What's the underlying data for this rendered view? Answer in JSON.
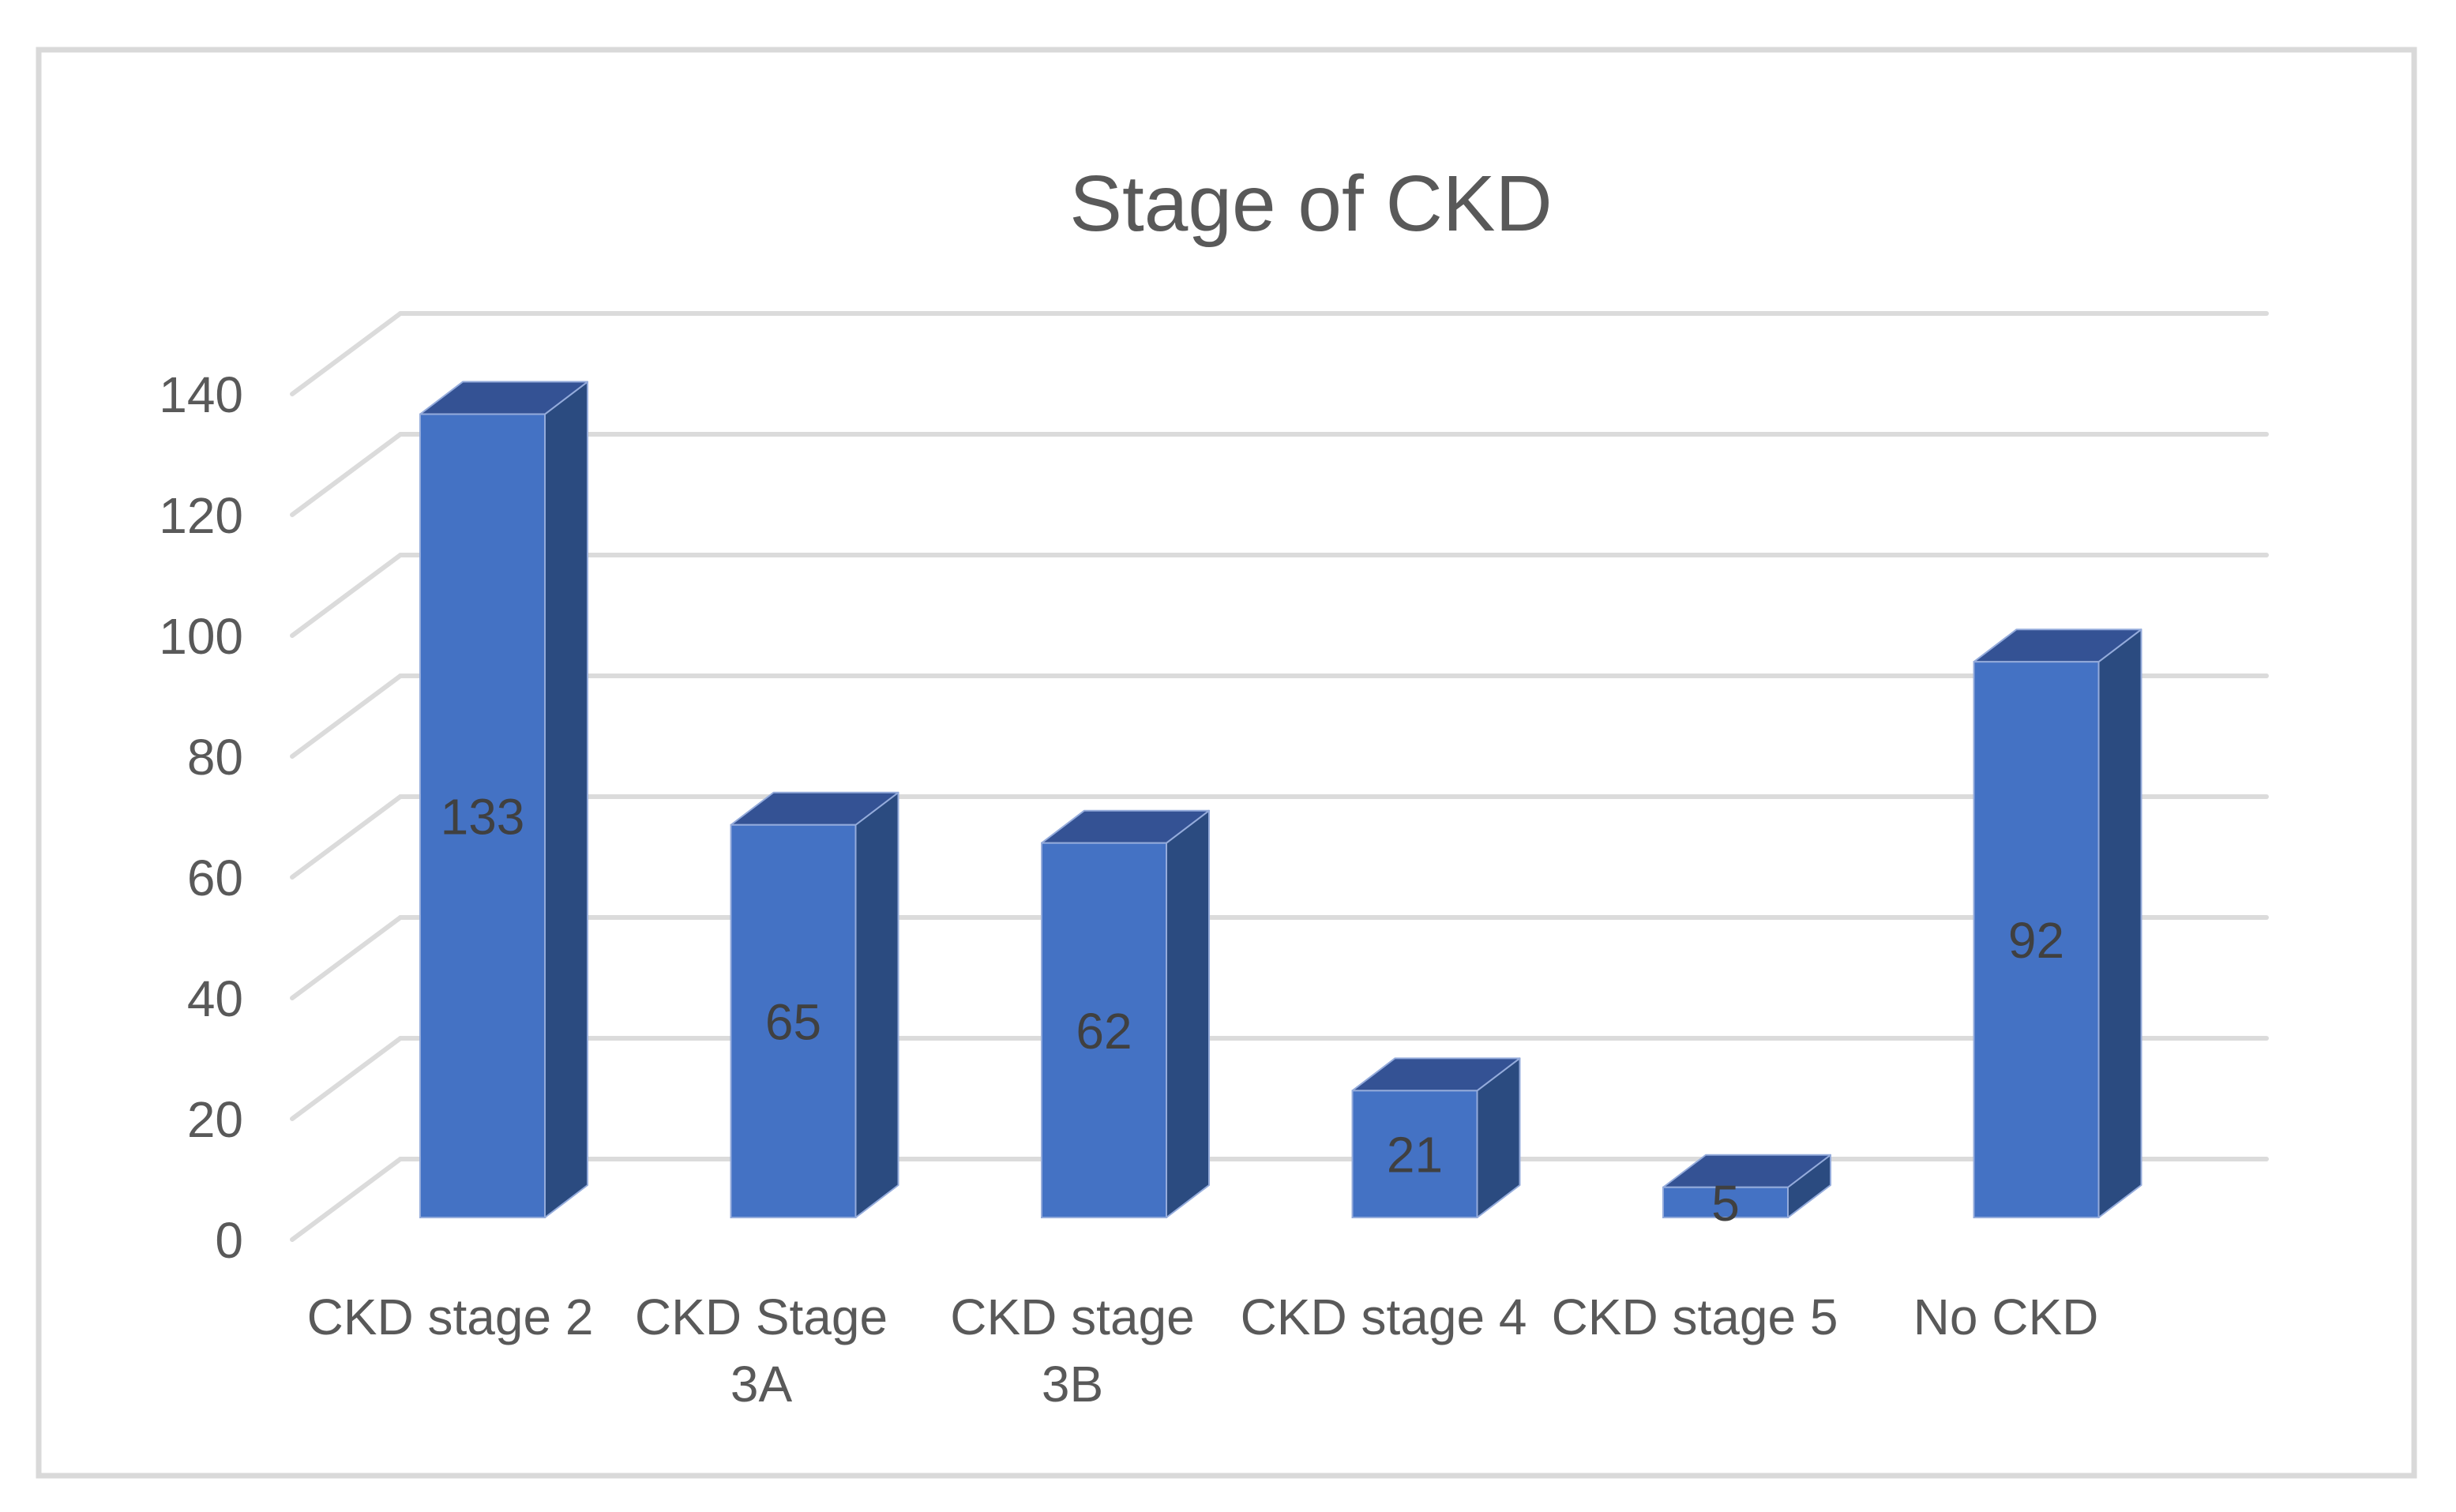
{
  "chart": {
    "title": "Stage of CKD",
    "border_color": "#D9D9D9",
    "background": "#FFFFFF"
  },
  "chart_data": {
    "type": "bar",
    "style": "3d-column",
    "title": "Stage of CKD",
    "xlabel": "",
    "ylabel": "",
    "categories": [
      "CKD stage 2",
      "CKD Stage 3A",
      "CKD stage 3B",
      "CKD stage 4",
      "CKD stage 5",
      "No CKD"
    ],
    "category_label_lines": [
      [
        "CKD stage 2"
      ],
      [
        "CKD Stage",
        "3A"
      ],
      [
        "CKD stage",
        "3B"
      ],
      [
        "CKD stage 4"
      ],
      [
        "CKD stage 5"
      ],
      [
        "No CKD"
      ]
    ],
    "values": [
      133,
      65,
      62,
      21,
      5,
      92
    ],
    "data_labels": [
      "133",
      "65",
      "62",
      "21",
      "5",
      "92"
    ],
    "ylim": [
      0,
      140
    ],
    "yticks": [
      0,
      20,
      40,
      60,
      80,
      100,
      120,
      140
    ],
    "ytick_labels": [
      "0",
      "20",
      "40",
      "60",
      "80",
      "100",
      "120",
      "140"
    ],
    "grid": true,
    "legend": false,
    "colors": {
      "bar_front": "#4472C4",
      "bar_top": "#345294",
      "bar_side": "#2B4B80",
      "bar_edge": "#94ABDB",
      "gridline": "#DBDBDB",
      "title_text": "#595959",
      "axis_text": "#595959",
      "data_label_text": "#404040"
    }
  }
}
